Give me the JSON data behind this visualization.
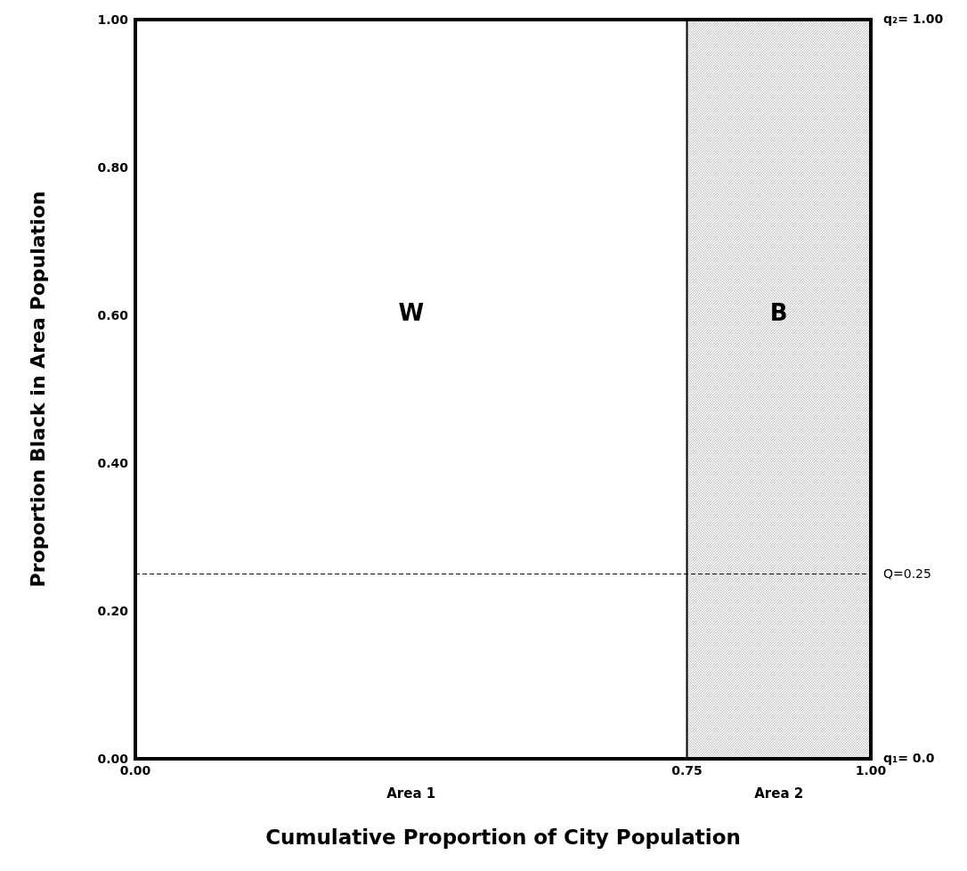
{
  "chart_data": {
    "type": "area",
    "xlabel": "Cumulative Proportion of City Population",
    "ylabel": "Proportion Black in Area Population",
    "x": [
      0,
      0.75,
      0.75,
      1.0
    ],
    "series": [
      {
        "color": "#c8c8c8",
        "values": [
          0,
          0,
          1,
          1
        ]
      }
    ],
    "xlim": [
      0,
      1
    ],
    "xticks": [
      {
        "value": 0,
        "label": "0.00"
      },
      {
        "value": 0.75,
        "label": "0.75"
      },
      {
        "value": 1,
        "label": "1.00"
      }
    ],
    "ylim": [
      0,
      1
    ],
    "yticks": [
      {
        "value": 0,
        "label": "0.00"
      },
      {
        "value": 0.2,
        "label": "0.20"
      },
      {
        "value": 0.4,
        "label": "0.40"
      },
      {
        "value": 0.6,
        "label": "0.60"
      },
      {
        "value": 0.8,
        "label": "0.80"
      },
      {
        "value": 1,
        "label": "1.00"
      }
    ],
    "ref_lines": [
      {
        "axis": "y",
        "value": 0.25,
        "label": "Q=0.25",
        "line_style": "dashed",
        "color": "#000000"
      }
    ],
    "annotations": [
      "W",
      "B",
      {
        "text": "q₂= 1.00",
        "x": 1,
        "y": 1
      },
      {
        "text": "q₁= 0.0",
        "x": 1,
        "y": 0
      },
      "Area 1",
      "Area 2"
    ],
    "line_style": "solid"
  }
}
